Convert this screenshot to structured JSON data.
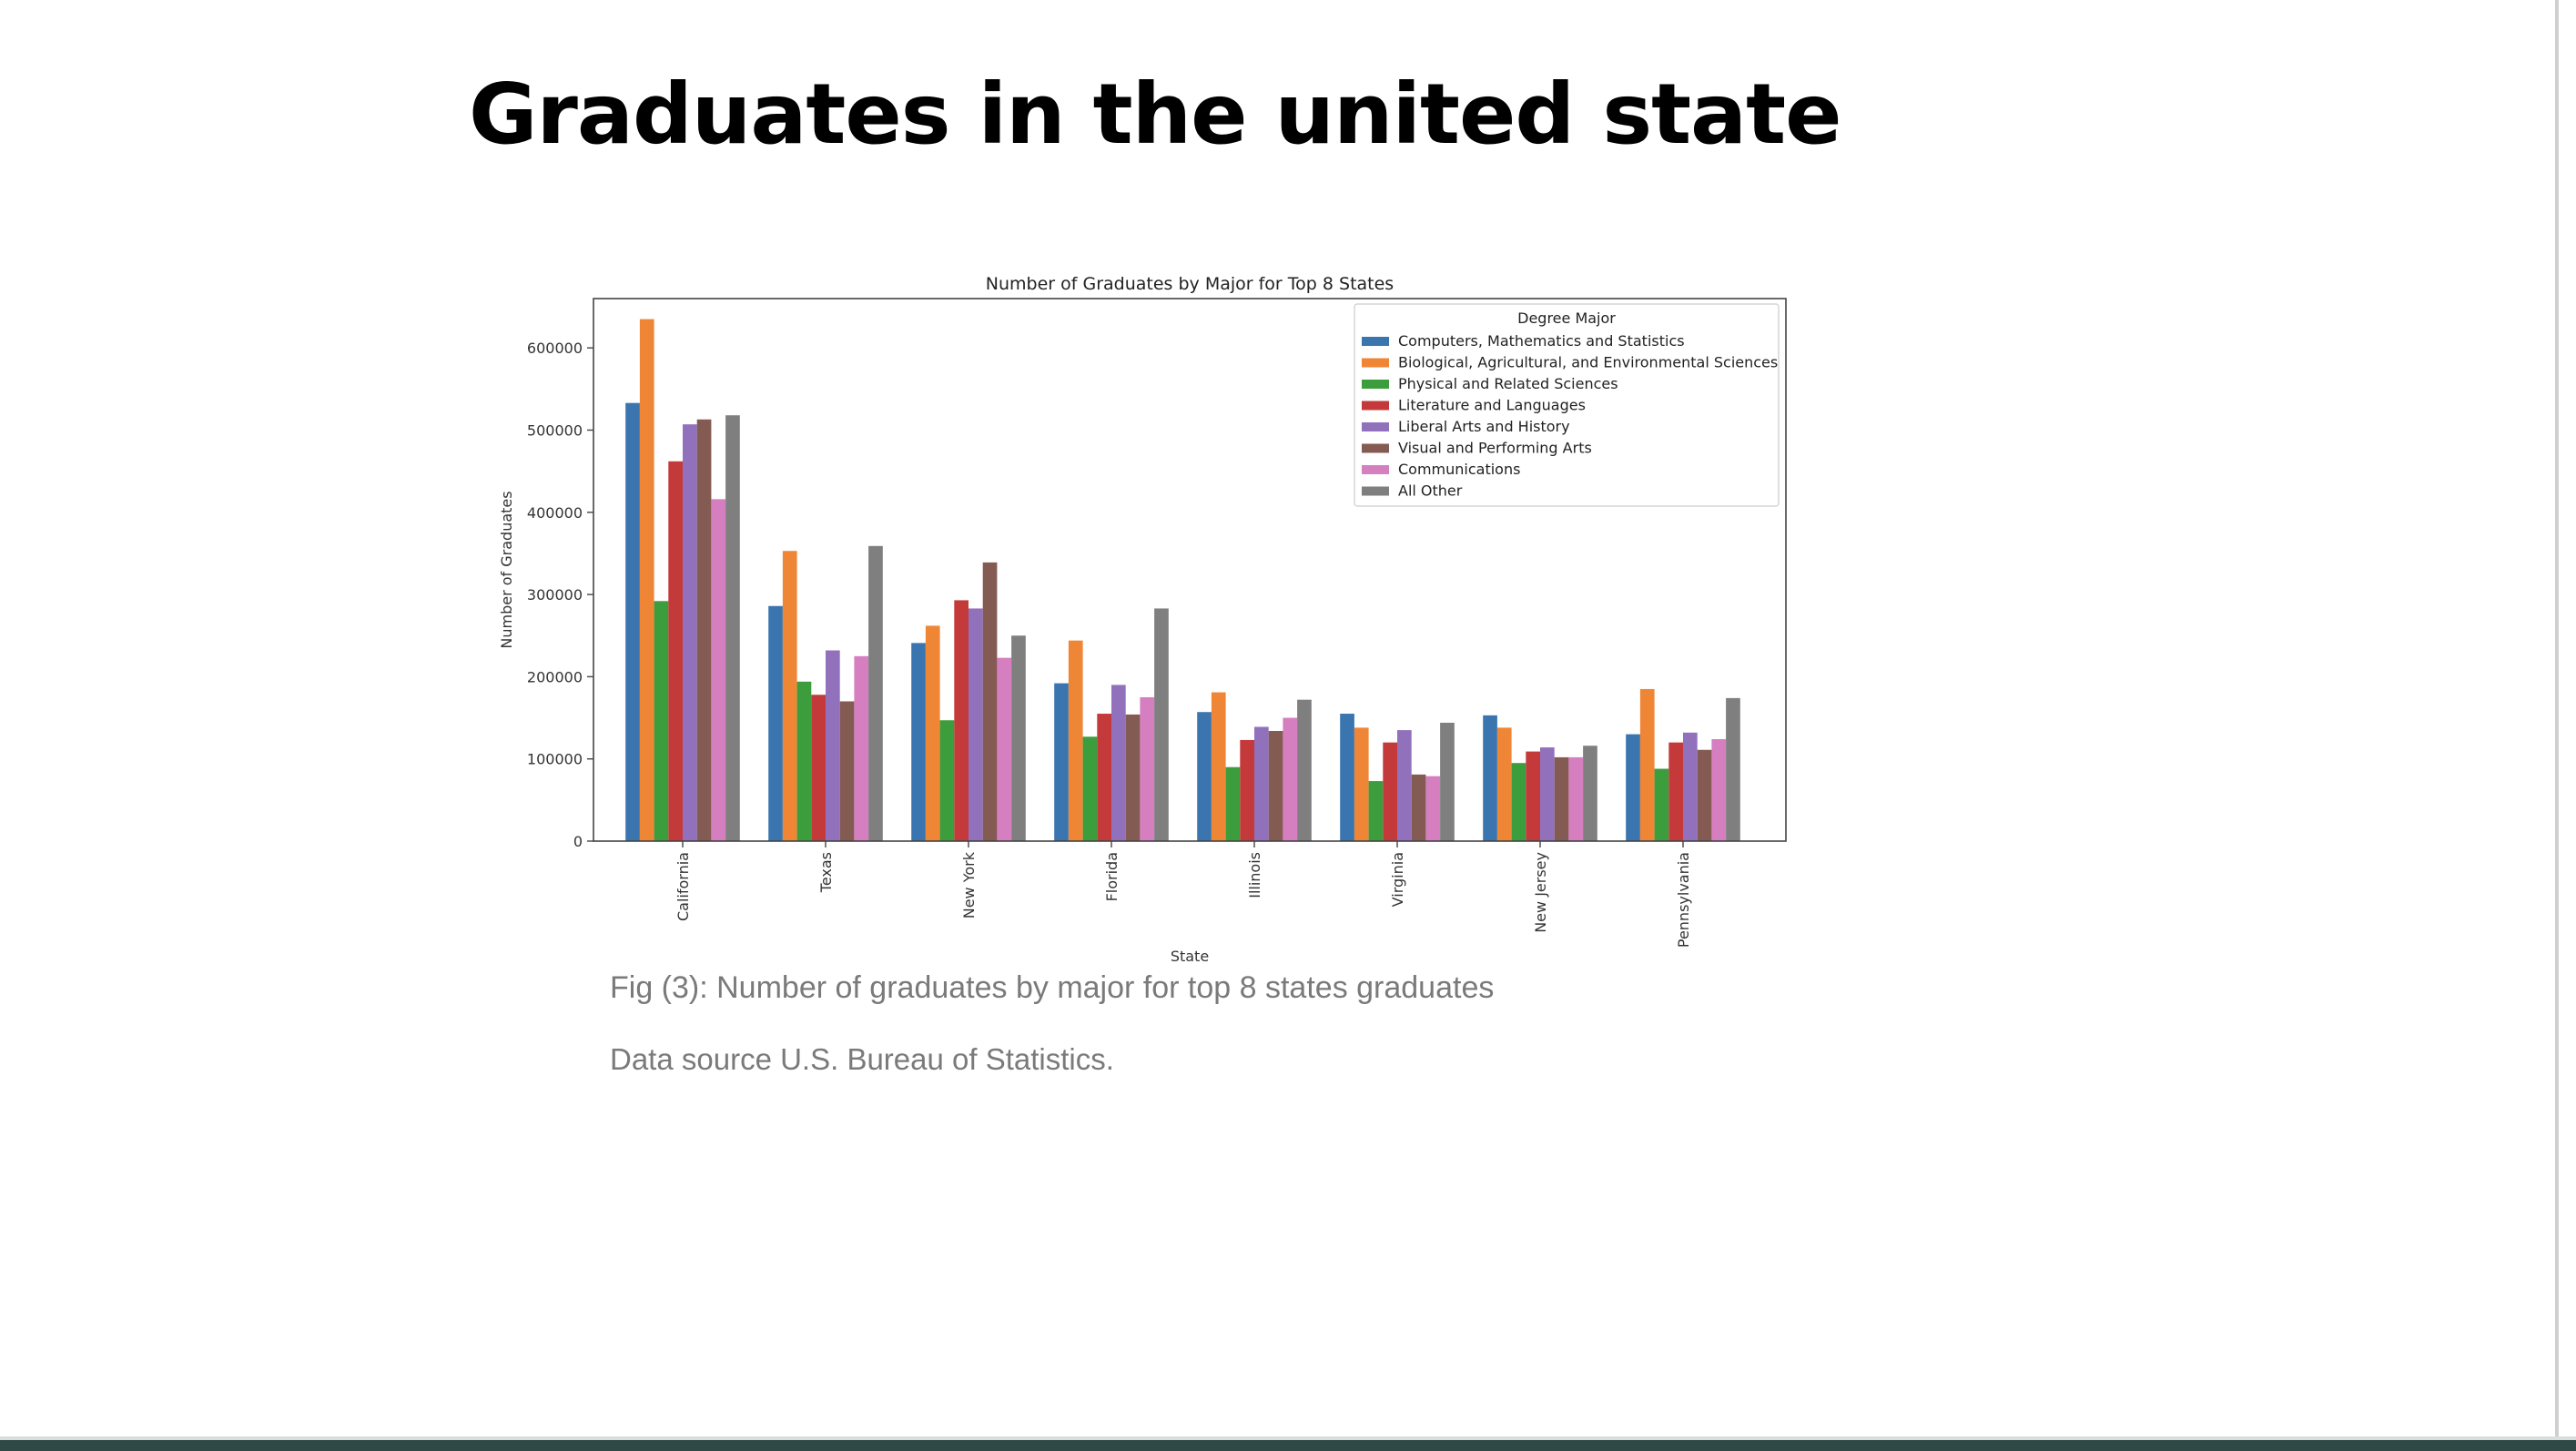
{
  "slide": {
    "title": "Graduates in the united state",
    "caption": "Fig (3): Number of graduates by major for top 8 states graduates",
    "source": "Data source U.S. Bureau of Statistics."
  },
  "chart_data": {
    "type": "bar",
    "title": "Number of Graduates by Major for Top 8 States",
    "xlabel": "State",
    "ylabel": "Number of Graduates",
    "ylim": [
      0,
      660000
    ],
    "yticks": [
      0,
      100000,
      200000,
      300000,
      400000,
      500000,
      600000
    ],
    "ytick_labels": [
      "0",
      "100000",
      "200000",
      "300000",
      "400000",
      "500000",
      "600000"
    ],
    "grid": false,
    "legend_title": "Degree Major",
    "legend_position": "top-right",
    "categories": [
      "California",
      "Texas",
      "New York",
      "Florida",
      "Illinois",
      "Virginia",
      "New Jersey",
      "Pennsylvania"
    ],
    "series": [
      {
        "name": "Computers, Mathematics and Statistics",
        "color": "#3a75b0",
        "values": [
          533000,
          286000,
          241000,
          192000,
          157000,
          155000,
          153000,
          130000
        ]
      },
      {
        "name": "Biological, Agricultural, and Environmental Sciences",
        "color": "#ef8636",
        "values": [
          635000,
          353000,
          262000,
          244000,
          181000,
          138000,
          138000,
          185000
        ]
      },
      {
        "name": "Physical and Related Sciences",
        "color": "#3c9d3c",
        "values": [
          292000,
          194000,
          147000,
          127000,
          90000,
          73000,
          95000,
          88000
        ]
      },
      {
        "name": "Literature and Languages",
        "color": "#c43a3a",
        "values": [
          462000,
          178000,
          293000,
          155000,
          123000,
          120000,
          109000,
          120000
        ]
      },
      {
        "name": "Liberal Arts and History",
        "color": "#9271bc",
        "values": [
          507000,
          232000,
          283000,
          190000,
          139000,
          135000,
          114000,
          132000
        ]
      },
      {
        "name": "Visual and Performing Arts",
        "color": "#845b53",
        "values": [
          513000,
          170000,
          339000,
          154000,
          134000,
          81000,
          102000,
          111000
        ]
      },
      {
        "name": "Communications",
        "color": "#d57ec0",
        "values": [
          416000,
          225000,
          223000,
          175000,
          150000,
          79000,
          102000,
          124000
        ]
      },
      {
        "name": "All Other",
        "color": "#7f7f7f",
        "values": [
          518000,
          359000,
          250000,
          283000,
          172000,
          144000,
          116000,
          174000
        ]
      }
    ]
  }
}
